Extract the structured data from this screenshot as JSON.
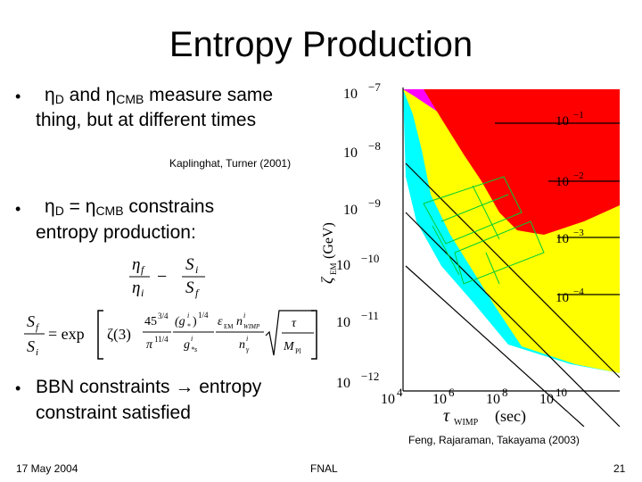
{
  "title": "Entropy Production",
  "bullets": {
    "b1_eta1": "η",
    "b1_sub1": "D",
    "b1_and": " and ",
    "b1_eta2": "η",
    "b1_sub2": "CMB",
    "b1_rest": " measure same",
    "b1_line2": "thing, but at different times",
    "b2_eta1": "η",
    "b2_sub1": "D",
    "b2_eq": " = ",
    "b2_eta2": "η",
    "b2_sub2": "CMB",
    "b2_rest": " constrains",
    "b2_line2": "entropy production:",
    "b3_pre": "BBN constraints ",
    "b3_arrow": "→",
    "b3_post": " entropy",
    "b3_line2": "constraint satisfied",
    "bullet_symbol": "•"
  },
  "citations": {
    "kaplinghat": "Kaplinghat, Turner (2001)",
    "feng": "Feng, Rajaraman, Takayama (2003)"
  },
  "footer": {
    "date": "17 May 2004",
    "venue": "FNAL",
    "page": "21"
  },
  "equations": {
    "eq1_eta_f": "η",
    "eq1_f": "f",
    "eq1_eta_i": "η",
    "eq1_i": "i",
    "eq1_minus": "−",
    "eq1_S_i": "S",
    "eq1_i2": "i",
    "eq1_S_f": "S",
    "eq1_f2": "f",
    "eq2_lhs_top": "S",
    "eq2_lhs_top_sub": "f",
    "eq2_lhs_bot": "S",
    "eq2_lhs_bot_sub": "i",
    "eq2_eq": "= exp",
    "eq2_zeta": "ζ(3)",
    "eq2_num": "45",
    "eq2_num_exp": "3/4",
    "eq2_den": "π",
    "eq2_den_exp": "11/4",
    "eq2_g_top": "(g",
    "eq2_g_top_sub": "*",
    "eq2_g_top_sup": "i",
    "eq2_g_top_exp": ")",
    "eq2_g_top_pow": "1/4",
    "eq2_g_bot": "g",
    "eq2_g_bot_sub": "*s",
    "eq2_g_bot_sup": "i",
    "eq2_eps": "ε",
    "eq2_eps_sub": "EM",
    "eq2_n_top": "n",
    "eq2_n_top_sup": "i",
    "eq2_n_top_sub": "WIMP",
    "eq2_n_bot": "n",
    "eq2_n_bot_sup": "i",
    "eq2_n_bot_sub": "γ",
    "eq2_tau": "τ",
    "eq2_M": "M",
    "eq2_M_sub": "Pl"
  },
  "plot": {
    "y_ticks": [
      {
        "base": "10",
        "exp": "−7"
      },
      {
        "base": "10",
        "exp": "−8"
      },
      {
        "base": "10",
        "exp": "−9"
      },
      {
        "base": "10",
        "exp": "−10"
      },
      {
        "base": "10",
        "exp": "−11"
      },
      {
        "base": "10",
        "exp": "−12"
      }
    ],
    "x_ticks": [
      {
        "base": "10",
        "exp": "4"
      },
      {
        "base": "10",
        "exp": "6"
      },
      {
        "base": "10",
        "exp": "8"
      },
      {
        "base": "10",
        "exp": "10"
      }
    ],
    "contour_labels": [
      {
        "base": "10",
        "exp": "−1"
      },
      {
        "base": "10",
        "exp": "−2"
      },
      {
        "base": "10",
        "exp": "−3"
      },
      {
        "base": "10",
        "exp": "−4"
      }
    ],
    "xlabel": "τ",
    "xlabel_sub": "WIMP",
    "xlabel_unit": "(sec)",
    "ylabel": "ζ",
    "ylabel_sub": "EM",
    "ylabel_unit": "(GeV)",
    "colors": {
      "red": "#ff0000",
      "yellow": "#ffff00",
      "magenta": "#ff00ff",
      "cyan": "#00ffff",
      "green": "#00cc33"
    }
  }
}
